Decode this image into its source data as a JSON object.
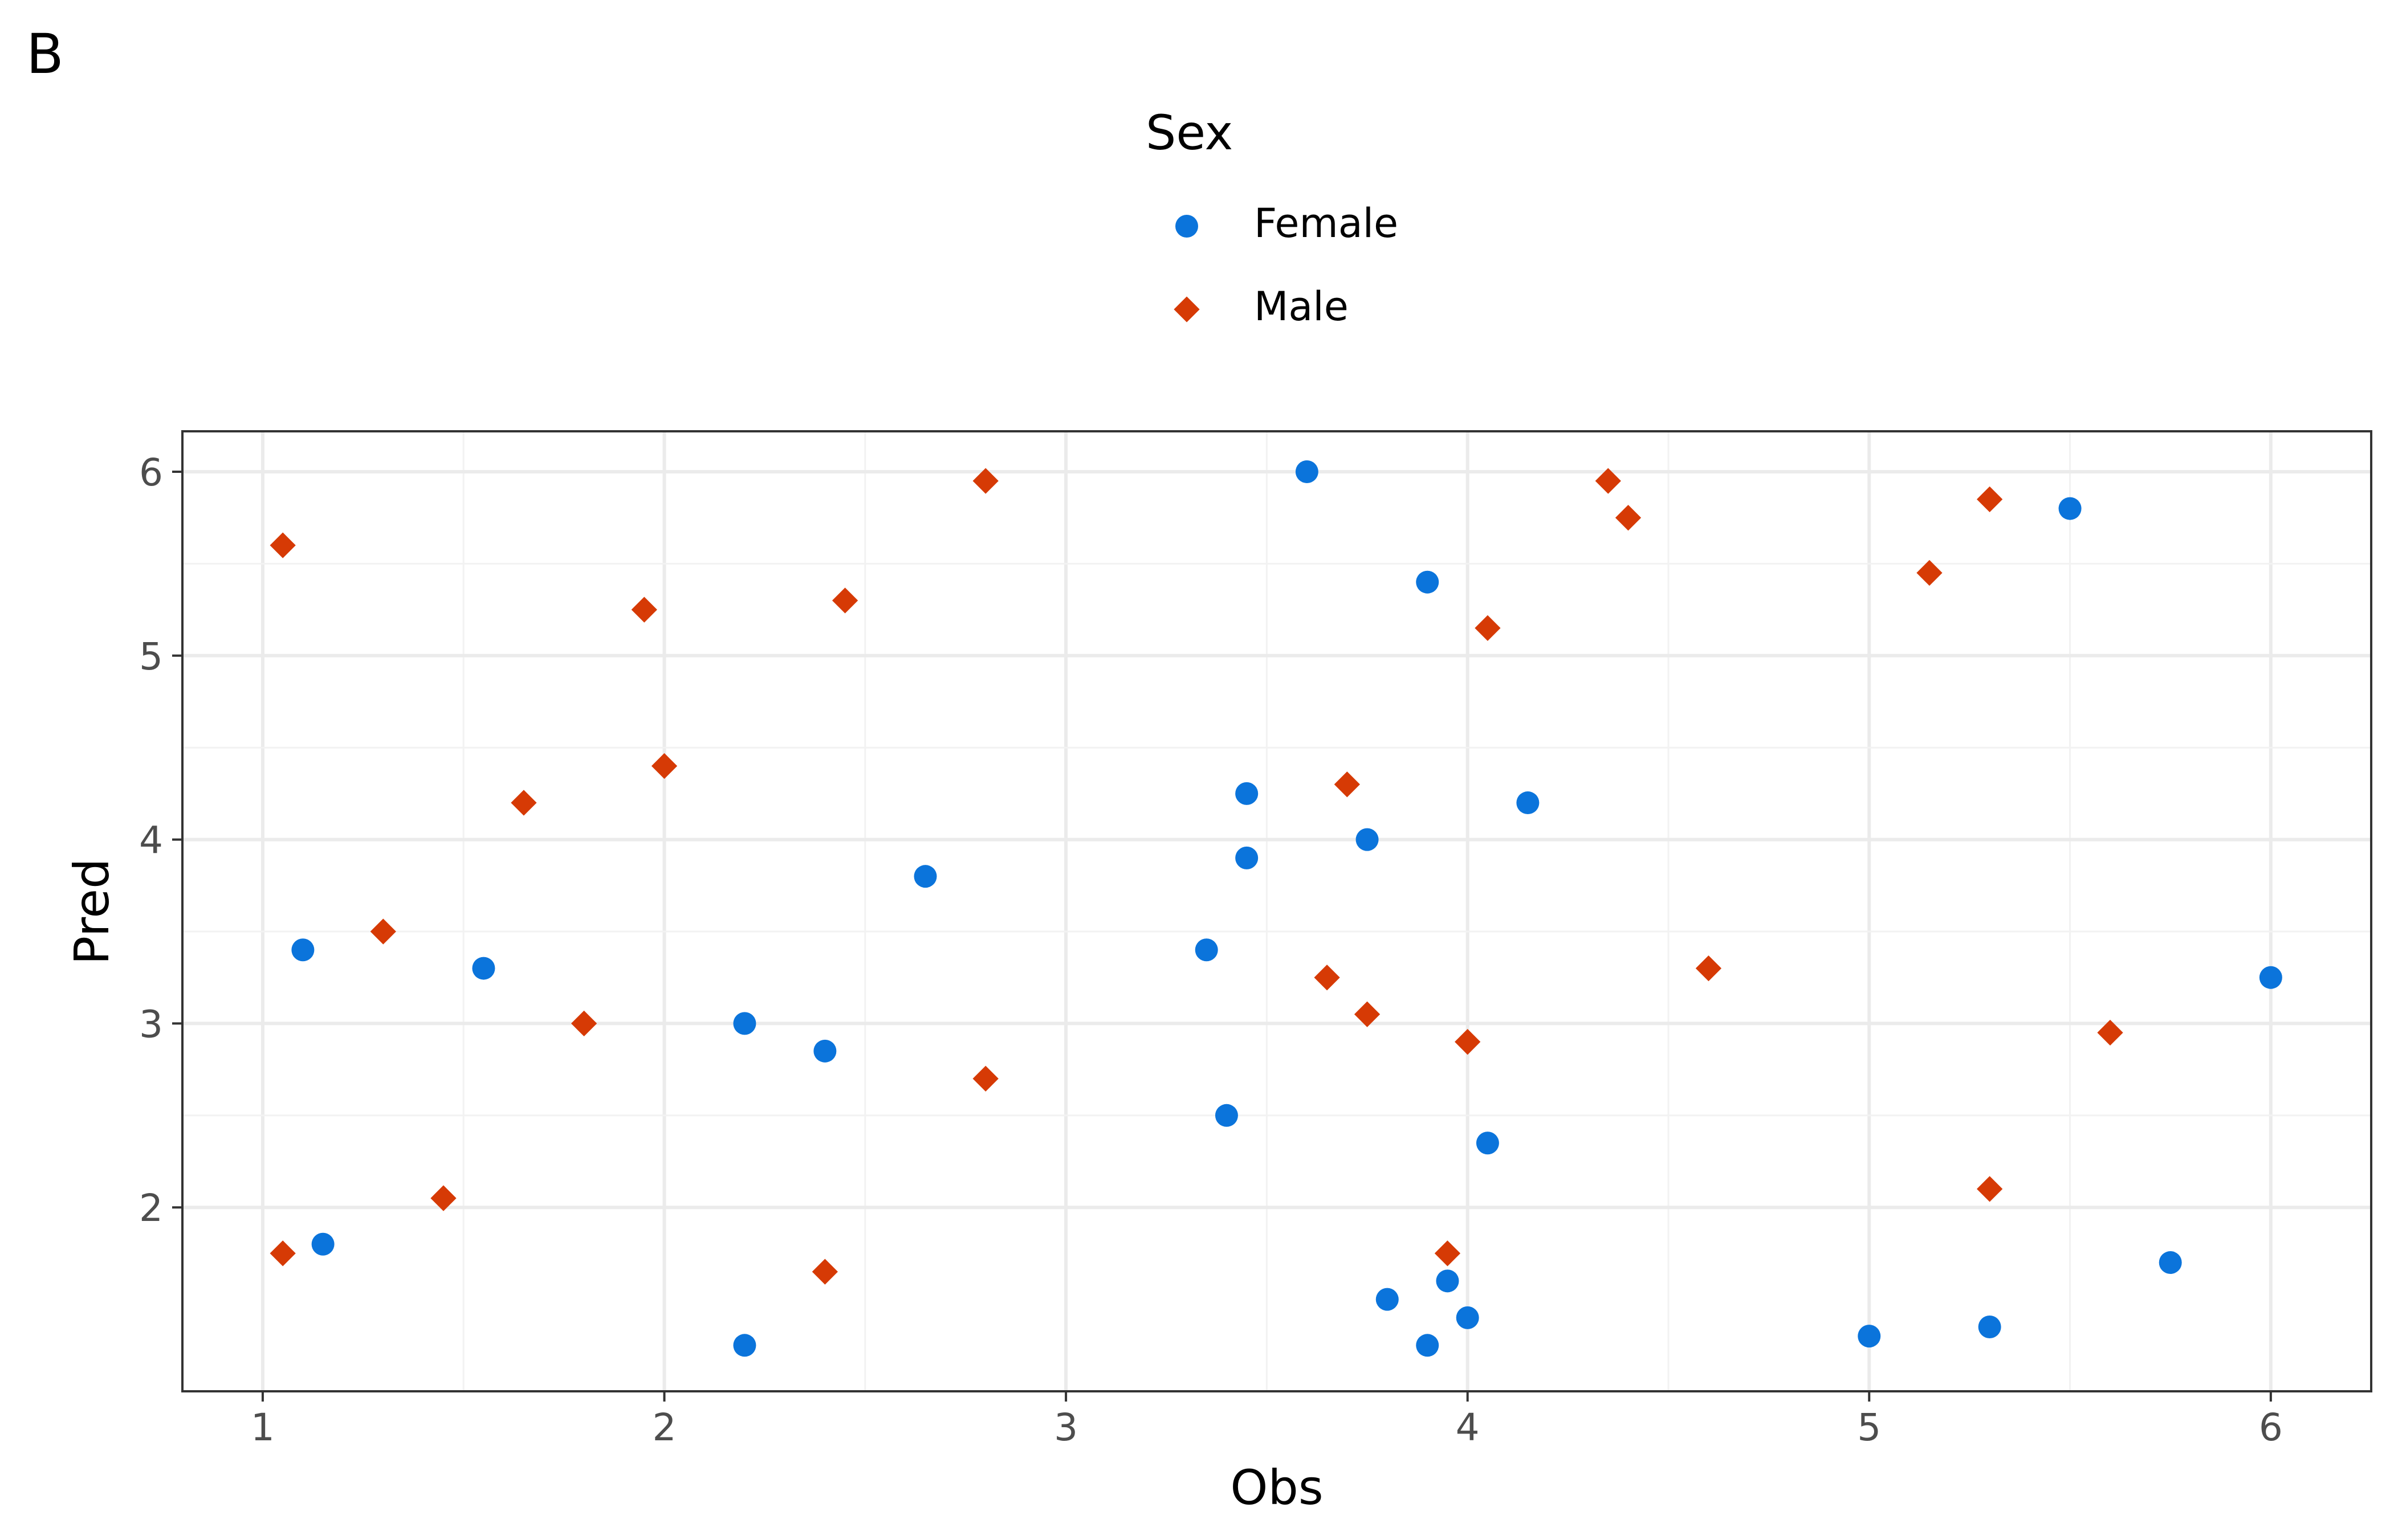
{
  "panel_label": "B",
  "legend": {
    "title": "Sex",
    "items": [
      {
        "label": "Female",
        "shape": "circle",
        "color": "#0B74DB"
      },
      {
        "label": "Male",
        "shape": "diamond",
        "color": "#D63A05"
      }
    ]
  },
  "chart_data": {
    "type": "scatter",
    "title": "",
    "xlabel": "Obs",
    "ylabel": "Pred",
    "xlim": [
      0.8,
      6.25
    ],
    "ylim": [
      1.0,
      6.22
    ],
    "xticks": [
      1,
      2,
      3,
      4,
      5,
      6
    ],
    "yticks": [
      2,
      3,
      4,
      5,
      6
    ],
    "grid": true,
    "legend_position": "top",
    "series": [
      {
        "name": "Female",
        "shape": "circle",
        "color": "#0B74DB",
        "points": [
          [
            1.1,
            3.4
          ],
          [
            1.15,
            1.8
          ],
          [
            1.55,
            3.3
          ],
          [
            2.2,
            3.0
          ],
          [
            2.2,
            1.25
          ],
          [
            2.4,
            2.85
          ],
          [
            2.65,
            3.8
          ],
          [
            3.35,
            3.4
          ],
          [
            3.4,
            2.5
          ],
          [
            3.45,
            4.25
          ],
          [
            3.45,
            3.9
          ],
          [
            3.6,
            6.0
          ],
          [
            3.75,
            4.0
          ],
          [
            3.8,
            1.5
          ],
          [
            3.9,
            5.4
          ],
          [
            3.9,
            1.25
          ],
          [
            3.95,
            1.6
          ],
          [
            4.0,
            1.4
          ],
          [
            4.05,
            2.35
          ],
          [
            4.15,
            4.2
          ],
          [
            5.0,
            1.3
          ],
          [
            5.3,
            1.35
          ],
          [
            5.5,
            5.8
          ],
          [
            5.75,
            1.7
          ],
          [
            6.0,
            3.25
          ]
        ]
      },
      {
        "name": "Male",
        "shape": "diamond",
        "color": "#D63A05",
        "points": [
          [
            1.05,
            5.6
          ],
          [
            1.05,
            1.75
          ],
          [
            1.3,
            3.5
          ],
          [
            1.45,
            2.05
          ],
          [
            1.65,
            4.2
          ],
          [
            1.8,
            3.0
          ],
          [
            1.95,
            5.25
          ],
          [
            2.0,
            4.4
          ],
          [
            2.4,
            1.65
          ],
          [
            2.45,
            5.3
          ],
          [
            2.8,
            5.95
          ],
          [
            2.8,
            2.7
          ],
          [
            3.65,
            3.25
          ],
          [
            3.7,
            4.3
          ],
          [
            3.75,
            3.05
          ],
          [
            3.95,
            1.75
          ],
          [
            4.0,
            2.9
          ],
          [
            4.05,
            5.15
          ],
          [
            4.35,
            5.95
          ],
          [
            4.4,
            5.75
          ],
          [
            4.6,
            3.3
          ],
          [
            5.15,
            5.45
          ],
          [
            5.3,
            5.85
          ],
          [
            5.3,
            2.1
          ],
          [
            5.6,
            2.95
          ]
        ]
      }
    ]
  }
}
